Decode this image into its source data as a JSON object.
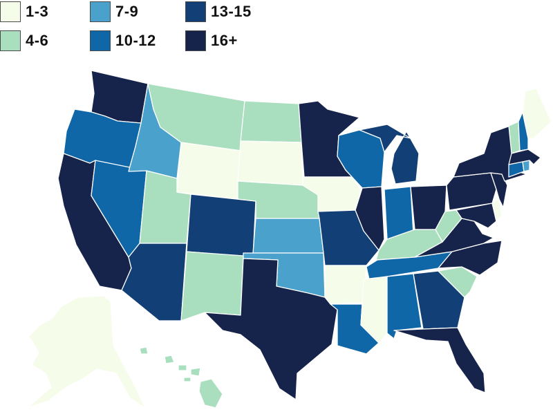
{
  "legend": {
    "items": [
      {
        "label": "1-3",
        "color": "#f5fce9"
      },
      {
        "label": "4-6",
        "color": "#a9dfbf"
      },
      {
        "label": "7-9",
        "color": "#4aa2cc"
      },
      {
        "label": "10-12",
        "color": "#0f67a8"
      },
      {
        "label": "13-15",
        "color": "#123f75"
      },
      {
        "label": "16+",
        "color": "#16234a"
      }
    ]
  },
  "states": {
    "WA": "16+",
    "OR": "10-12",
    "CA": "16+",
    "NV": "10-12",
    "ID": "7-9",
    "MT": "4-6",
    "WY": "1-3",
    "UT": "4-6",
    "AZ": "13-15",
    "CO": "13-15",
    "NM": "4-6",
    "ND": "4-6",
    "SD": "1-3",
    "NE": "4-6",
    "KS": "7-9",
    "OK": "7-9",
    "TX": "16+",
    "MN": "16+",
    "IA": "1-3",
    "MO": "13-15",
    "AR": "1-3",
    "LA": "10-12",
    "WI": "10-12",
    "IL": "16+",
    "MS": "1-3",
    "MI": "13-15",
    "IN": "10-12",
    "OH": "16+",
    "KY": "4-6",
    "TN": "10-12",
    "AL": "10-12",
    "GA": "13-15",
    "FL": "16+",
    "SC": "4-6",
    "NC": "16+",
    "VA": "16+",
    "WV": "4-6",
    "MD": "16+",
    "DE": "1-3",
    "PA": "16+",
    "NJ": "16+",
    "NY": "16+",
    "CT": "10-12",
    "RI": "7-9",
    "MA": "16+",
    "VT": "4-6",
    "NH": "10-12",
    "ME": "1-3",
    "AK": "1-3",
    "HI": "4-6"
  }
}
